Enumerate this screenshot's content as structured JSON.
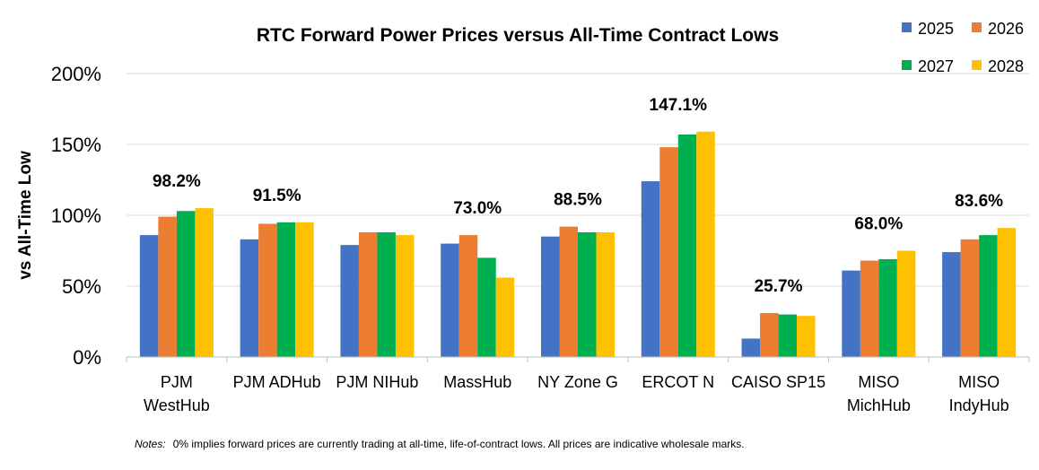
{
  "chart_data": {
    "type": "bar",
    "title": "RTC Forward Power Prices versus All-Time Contract Lows",
    "ylabel": "vs All-Time Low",
    "xlabel": "",
    "ylim": [
      0,
      200
    ],
    "yticks": [
      "0%",
      "50%",
      "100%",
      "150%",
      "200%"
    ],
    "y_tick_values": [
      0,
      50,
      100,
      150,
      200
    ],
    "grid": true,
    "legend_position": "top-right",
    "categories": [
      [
        "PJM",
        "WestHub"
      ],
      [
        "PJM ADHub"
      ],
      [
        "PJM NIHub"
      ],
      [
        "MassHub"
      ],
      [
        "NY Zone G"
      ],
      [
        "ERCOT N"
      ],
      [
        "CAISO SP15"
      ],
      [
        "MISO",
        "MichHub"
      ],
      [
        "MISO",
        "IndyHub"
      ]
    ],
    "series": [
      {
        "name": "2025",
        "color": "#4472C4",
        "values": [
          86,
          83,
          79,
          80,
          85,
          124,
          13,
          61,
          74
        ]
      },
      {
        "name": "2026",
        "color": "#ED7D31",
        "values": [
          99,
          94,
          88,
          86,
          92,
          148,
          31,
          68,
          83
        ]
      },
      {
        "name": "2027",
        "color": "#00B050",
        "values": [
          103,
          95,
          88,
          70,
          88,
          157,
          30,
          69,
          86
        ]
      },
      {
        "name": "2028",
        "color": "#FFC000",
        "values": [
          105,
          95,
          86,
          56,
          88,
          159,
          29,
          75,
          91
        ]
      }
    ],
    "annotations": [
      "98.2%",
      "91.5%",
      "",
      "73.0%",
      "88.5%",
      "147.1%",
      "25.7%",
      "68.0%",
      "83.6%"
    ],
    "annotation_values": [
      98.2,
      91.5,
      null,
      73.0,
      88.5,
      147.1,
      25.7,
      68.0,
      83.6
    ],
    "note_label": "Notes:",
    "note_text": "0% implies forward prices are currently trading at all-time, life-of-contract lows. All prices are indicative wholesale marks."
  }
}
